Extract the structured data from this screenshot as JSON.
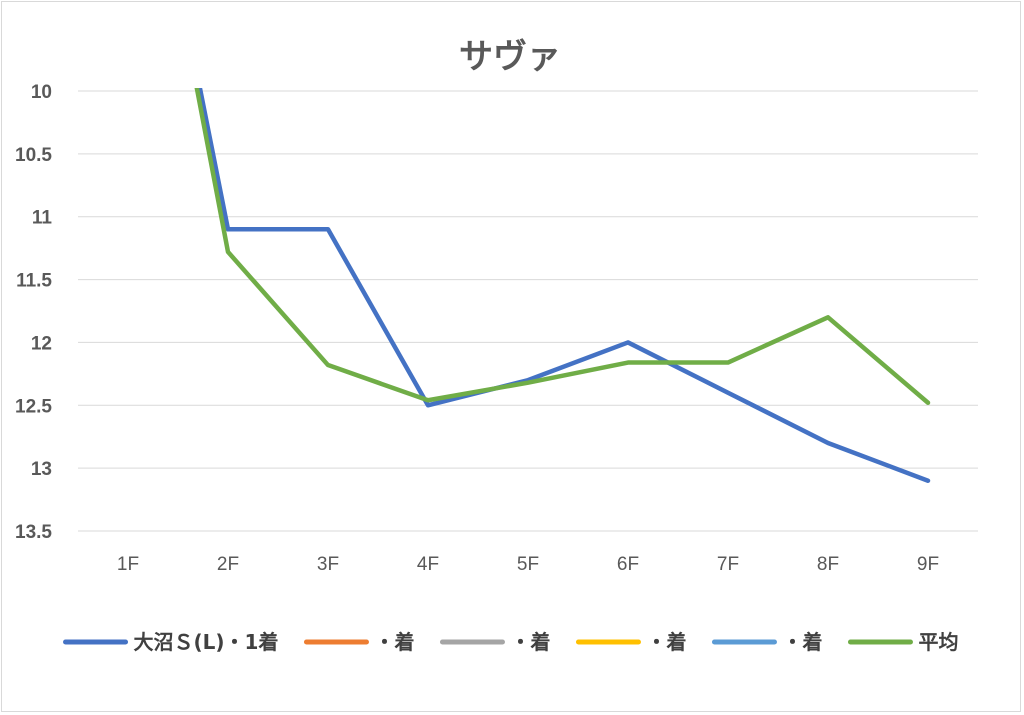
{
  "chart_data": {
    "type": "line",
    "title": "サヴァ",
    "xlabel": "",
    "ylabel": "",
    "categories": [
      "1F",
      "2F",
      "3F",
      "4F",
      "5F",
      "6F",
      "7F",
      "8F",
      "9F"
    ],
    "y_axis": {
      "reversed": true,
      "ylim": [
        10,
        13.5
      ],
      "ticks": [
        "10",
        "10.5",
        "11",
        "11.5",
        "12",
        "12.5",
        "13",
        "13.5"
      ]
    },
    "grid": "horizontal",
    "legend_position": "bottom",
    "series": [
      {
        "name": "大沼Ｓ(L)・1着",
        "color": "#4472c4",
        "values": [
          7.1,
          11.1,
          11.1,
          12.5,
          12.3,
          12.0,
          12.4,
          12.8,
          13.1
        ]
      },
      {
        "name": "・着",
        "color": "#ed7d31",
        "values": [
          null,
          null,
          null,
          null,
          null,
          null,
          null,
          null,
          null
        ]
      },
      {
        "name": "・着",
        "color": "#a5a5a5",
        "values": [
          null,
          null,
          null,
          null,
          null,
          null,
          null,
          null,
          null
        ]
      },
      {
        "name": "・着",
        "color": "#ffc000",
        "values": [
          null,
          null,
          null,
          null,
          null,
          null,
          null,
          null,
          null
        ]
      },
      {
        "name": "・着",
        "color": "#5b9bd5",
        "values": [
          null,
          null,
          null,
          null,
          null,
          null,
          null,
          null,
          null
        ]
      },
      {
        "name": "平均",
        "color": "#70ad47",
        "values": [
          7.1,
          11.28,
          12.18,
          12.46,
          12.32,
          12.16,
          12.16,
          11.8,
          12.48
        ]
      }
    ]
  }
}
